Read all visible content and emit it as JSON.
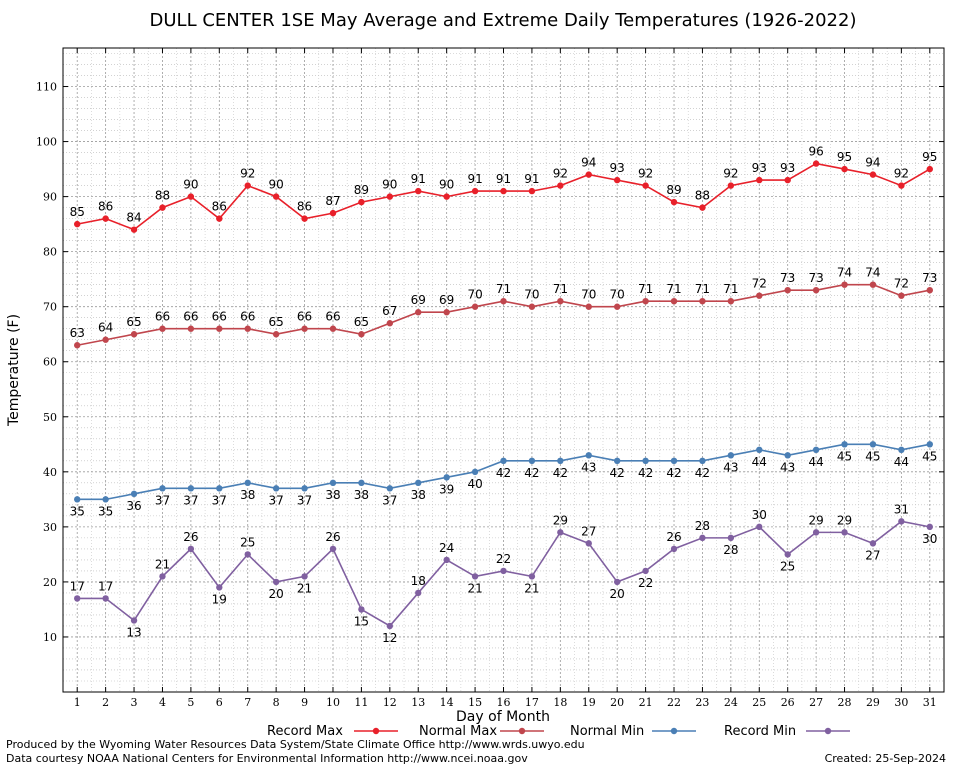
{
  "chart_data": {
    "type": "line",
    "title": "DULL CENTER 1SE May Average and Extreme Daily Temperatures (1926-2022)",
    "xlabel": "Day of Month",
    "ylabel": "Temperature (F)",
    "x": [
      1,
      2,
      3,
      4,
      5,
      6,
      7,
      8,
      9,
      10,
      11,
      12,
      13,
      14,
      15,
      16,
      17,
      18,
      19,
      20,
      21,
      22,
      23,
      24,
      25,
      26,
      27,
      28,
      29,
      30,
      31
    ],
    "xlim": [
      0.5,
      31.5
    ],
    "ylim": [
      0,
      117
    ],
    "yticks": [
      10,
      20,
      30,
      40,
      50,
      60,
      70,
      80,
      90,
      100,
      110
    ],
    "grid": true,
    "legend_position": "bottom",
    "series": [
      {
        "name": "Record Max",
        "color": "#e8202a",
        "values": [
          85,
          86,
          84,
          88,
          90,
          86,
          92,
          90,
          86,
          87,
          89,
          90,
          91,
          90,
          91,
          91,
          91,
          92,
          94,
          93,
          92,
          89,
          88,
          92,
          93,
          93,
          96,
          95,
          94,
          92,
          95
        ]
      },
      {
        "name": "Normal Max",
        "color": "#c0464d",
        "values": [
          63,
          64,
          65,
          66,
          66,
          66,
          66,
          65,
          66,
          66,
          65,
          67,
          69,
          69,
          70,
          71,
          70,
          71,
          70,
          70,
          71,
          71,
          71,
          71,
          72,
          73,
          73,
          74,
          74,
          72,
          73
        ]
      },
      {
        "name": "Normal Min",
        "color": "#4a7fb5",
        "values": [
          35,
          35,
          36,
          37,
          37,
          37,
          38,
          37,
          37,
          38,
          38,
          37,
          38,
          39,
          40,
          42,
          42,
          42,
          43,
          42,
          42,
          42,
          42,
          43,
          44,
          43,
          44,
          45,
          45,
          44,
          45
        ]
      },
      {
        "name": "Record Min",
        "color": "#8060a0",
        "values": [
          17,
          17,
          13,
          21,
          26,
          19,
          25,
          20,
          21,
          26,
          15,
          12,
          18,
          24,
          21,
          22,
          21,
          29,
          27,
          20,
          22,
          26,
          28,
          28,
          30,
          25,
          29,
          29,
          27,
          31,
          30
        ]
      }
    ]
  },
  "footer": {
    "producer": "Produced by the Wyoming Water Resources Data System/State Climate Office http://www.wrds.uwyo.edu",
    "courtesy": "Data courtesy NOAA National Centers for Environmental Information http://www.ncei.noaa.gov",
    "created": "Created:  25-Sep-2024"
  }
}
